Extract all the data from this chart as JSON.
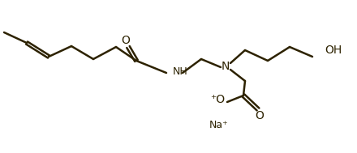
{
  "line_color": "#2d2200",
  "bg_color": "#ffffff",
  "line_width": 1.8,
  "font_size": 9,
  "dpi": 100,
  "figsize": [
    4.4,
    1.89
  ],
  "atoms": {
    "OH_label": "OH",
    "Na_label": "Na⁺",
    "O_minus_label": "⁺O",
    "O_bottom_label": "O",
    "NH_label": "NH",
    "N_label": "N",
    "O_amide_label": "O"
  }
}
